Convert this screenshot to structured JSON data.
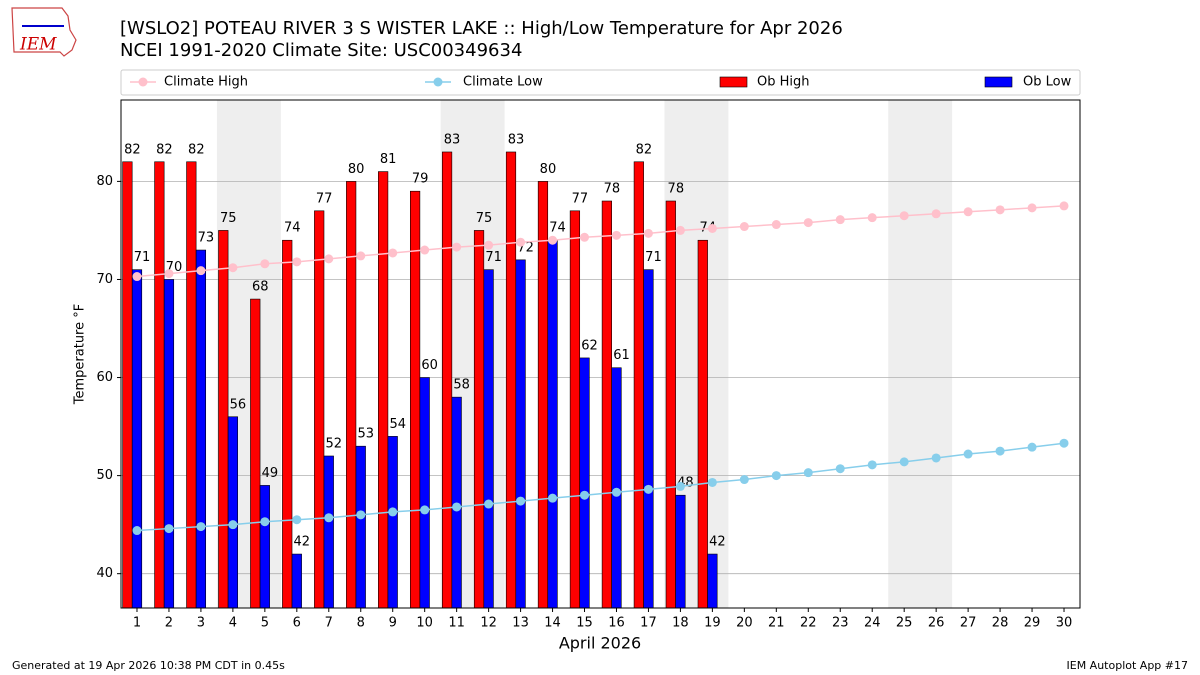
{
  "chart_data": {
    "type": "bar",
    "title": "[WSLO2] POTEAU RIVER 3 S WISTER LAKE :: High/Low Temperature for Apr 2026",
    "subtitle": "NCEI 1991-2020 Climate Site: USC00349634",
    "xlabel": "April 2026",
    "ylabel": "Temperature °F",
    "x": [
      1,
      2,
      3,
      4,
      5,
      6,
      7,
      8,
      9,
      10,
      11,
      12,
      13,
      14,
      15,
      16,
      17,
      18,
      19,
      20,
      21,
      22,
      23,
      24,
      25,
      26,
      27,
      28,
      29,
      30
    ],
    "xlim": [
      0.5,
      30.5
    ],
    "ylim": [
      36.5,
      88.3
    ],
    "xticks": [
      1,
      2,
      3,
      4,
      5,
      6,
      7,
      8,
      9,
      10,
      11,
      12,
      13,
      14,
      15,
      16,
      17,
      18,
      19,
      20,
      21,
      22,
      23,
      24,
      25,
      26,
      27,
      28,
      29,
      30
    ],
    "yticks": [
      40,
      50,
      60,
      70,
      80
    ],
    "grid": true,
    "shaded_ranges": [
      [
        3.5,
        5.5
      ],
      [
        10.5,
        12.5
      ],
      [
        17.5,
        19.5
      ],
      [
        24.5,
        26.5
      ]
    ],
    "series": [
      {
        "name": "Climate High",
        "type": "line",
        "color": "#ffc0cb",
        "values": [
          70.3,
          70.6,
          70.9,
          71.2,
          71.6,
          71.8,
          72.1,
          72.4,
          72.7,
          73.0,
          73.3,
          73.5,
          73.8,
          74.0,
          74.3,
          74.5,
          74.7,
          75.0,
          75.2,
          75.4,
          75.6,
          75.8,
          76.1,
          76.3,
          76.5,
          76.7,
          76.9,
          77.1,
          77.3,
          77.5
        ]
      },
      {
        "name": "Climate Low",
        "type": "line",
        "color": "#87ceeb",
        "values": [
          44.4,
          44.6,
          44.8,
          45.0,
          45.3,
          45.5,
          45.7,
          46.0,
          46.3,
          46.5,
          46.8,
          47.1,
          47.4,
          47.7,
          48.0,
          48.3,
          48.6,
          48.9,
          49.3,
          49.6,
          50.0,
          50.3,
          50.7,
          51.1,
          51.4,
          51.8,
          52.2,
          52.5,
          52.9,
          53.3
        ]
      },
      {
        "name": "Ob High",
        "type": "bar",
        "color": "#ff0000",
        "values": [
          82,
          82,
          82,
          75,
          68,
          74,
          77,
          80,
          81,
          79,
          83,
          75,
          83,
          80,
          77,
          78,
          82,
          78,
          74,
          null,
          null,
          null,
          null,
          null,
          null,
          null,
          null,
          null,
          null,
          null
        ]
      },
      {
        "name": "Ob Low",
        "type": "bar",
        "color": "#0000ff",
        "values": [
          71,
          70,
          73,
          56,
          49,
          42,
          52,
          53,
          54,
          60,
          58,
          71,
          72,
          74,
          62,
          61,
          71,
          48,
          42,
          null,
          null,
          null,
          null,
          null,
          null,
          null,
          null,
          null,
          null,
          null
        ]
      }
    ]
  },
  "logo": "IEM",
  "footer_left": "Generated at 19 Apr 2026 10:38 PM CDT in 0.45s",
  "footer_right": "IEM Autoplot App #17"
}
